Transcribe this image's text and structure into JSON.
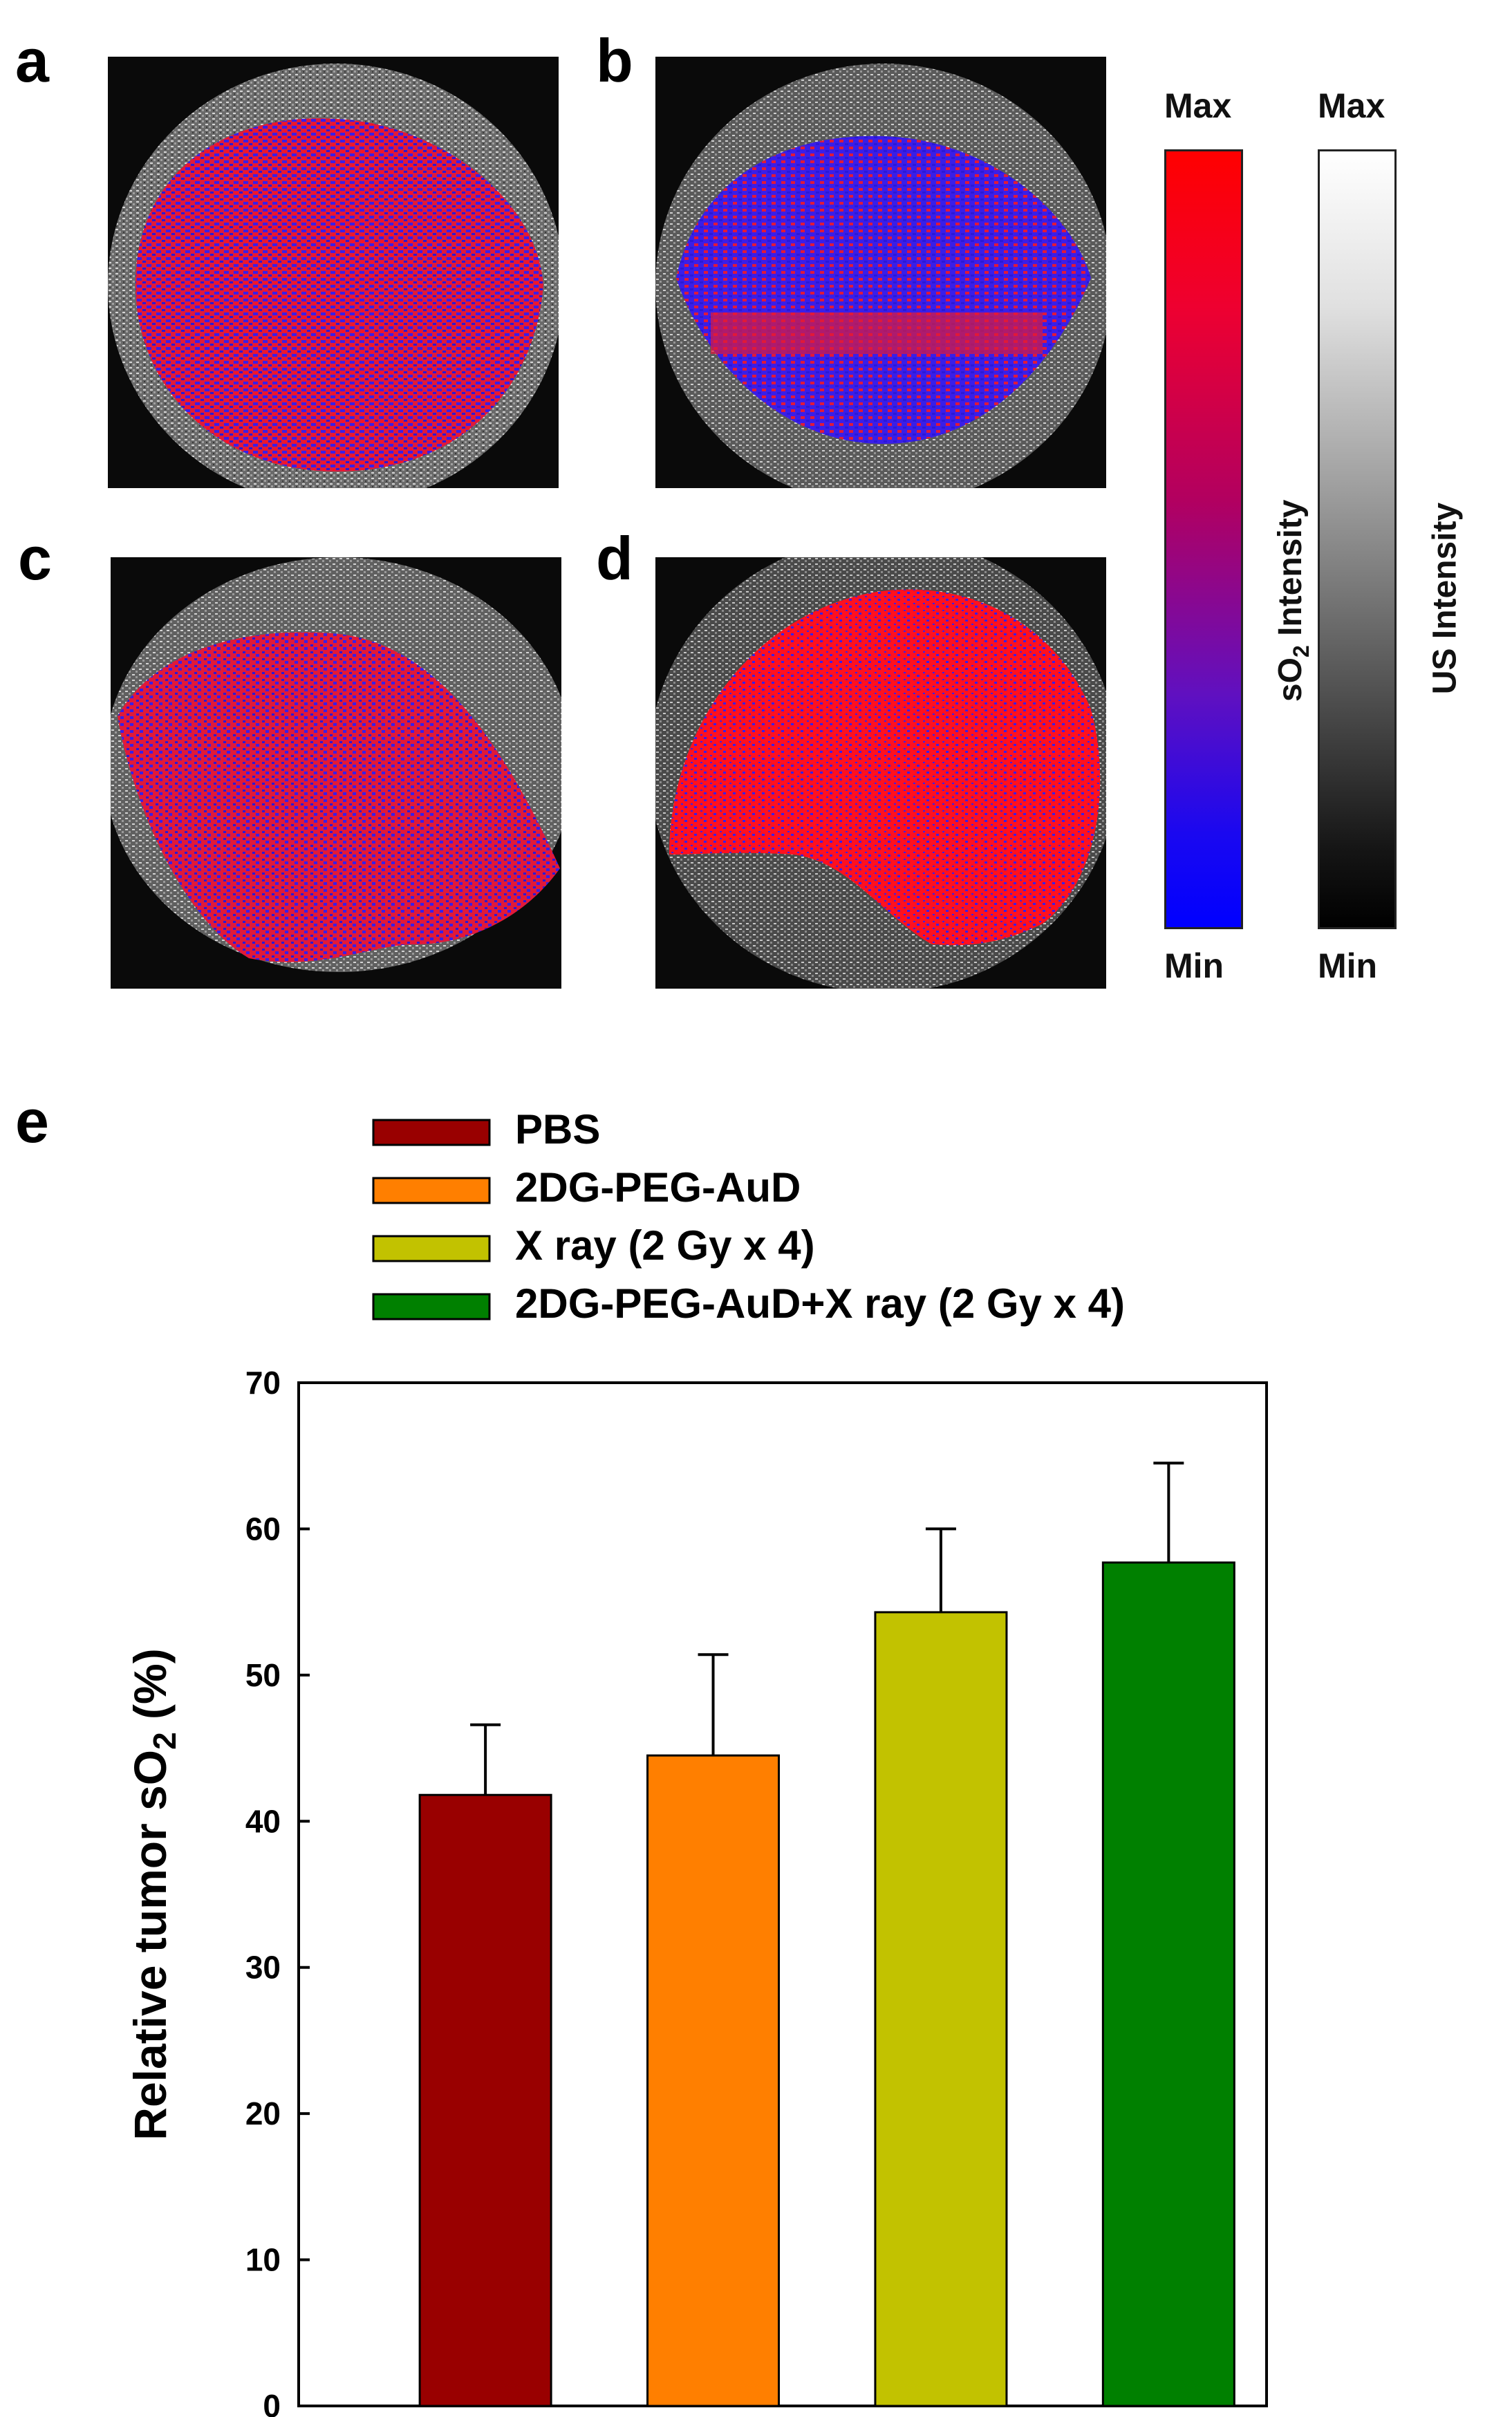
{
  "panels": [
    {
      "letter": "a"
    },
    {
      "letter": "b"
    },
    {
      "letter": "c"
    },
    {
      "letter": "d"
    }
  ],
  "colorbars": {
    "so2": {
      "top_label": "Max",
      "bottom_label": "Min",
      "title_main": "sO",
      "title_sub": "2",
      "title_rest": " Intensity",
      "color_max": "#ff0000",
      "color_min": "#0000ff"
    },
    "us": {
      "top_label": "Max",
      "bottom_label": "Min",
      "title": "US Intensity",
      "color_max": "#ffffff",
      "color_min": "#000000"
    }
  },
  "chart_panel_letter": "e",
  "chart_data": {
    "type": "bar",
    "categories": [
      "PBS",
      "2DG-PEG-AuD",
      "X ray (2 Gy x 4)",
      "2DG-PEG-AuD+X ray (2 Gy x 4)"
    ],
    "values": [
      41.8,
      44.5,
      54.3,
      57.7
    ],
    "errors": [
      4.8,
      6.9,
      5.7,
      6.8
    ],
    "colors": [
      "#990000",
      "#ff7f00",
      "#c2c200",
      "#008000"
    ],
    "legend": [
      "PBS",
      "2DG-PEG-AuD",
      "X ray (2 Gy x 4)",
      "2DG-PEG-AuD+X ray (2 Gy x 4)"
    ],
    "legend_position": "top",
    "ylabel_main": "Relative tumor sO",
    "ylabel_sub": "2",
    "ylabel_rest": " (%)",
    "xlabel": "",
    "ylim": [
      0,
      70
    ],
    "yticks": [
      0,
      10,
      20,
      30,
      40,
      50,
      60,
      70
    ]
  }
}
